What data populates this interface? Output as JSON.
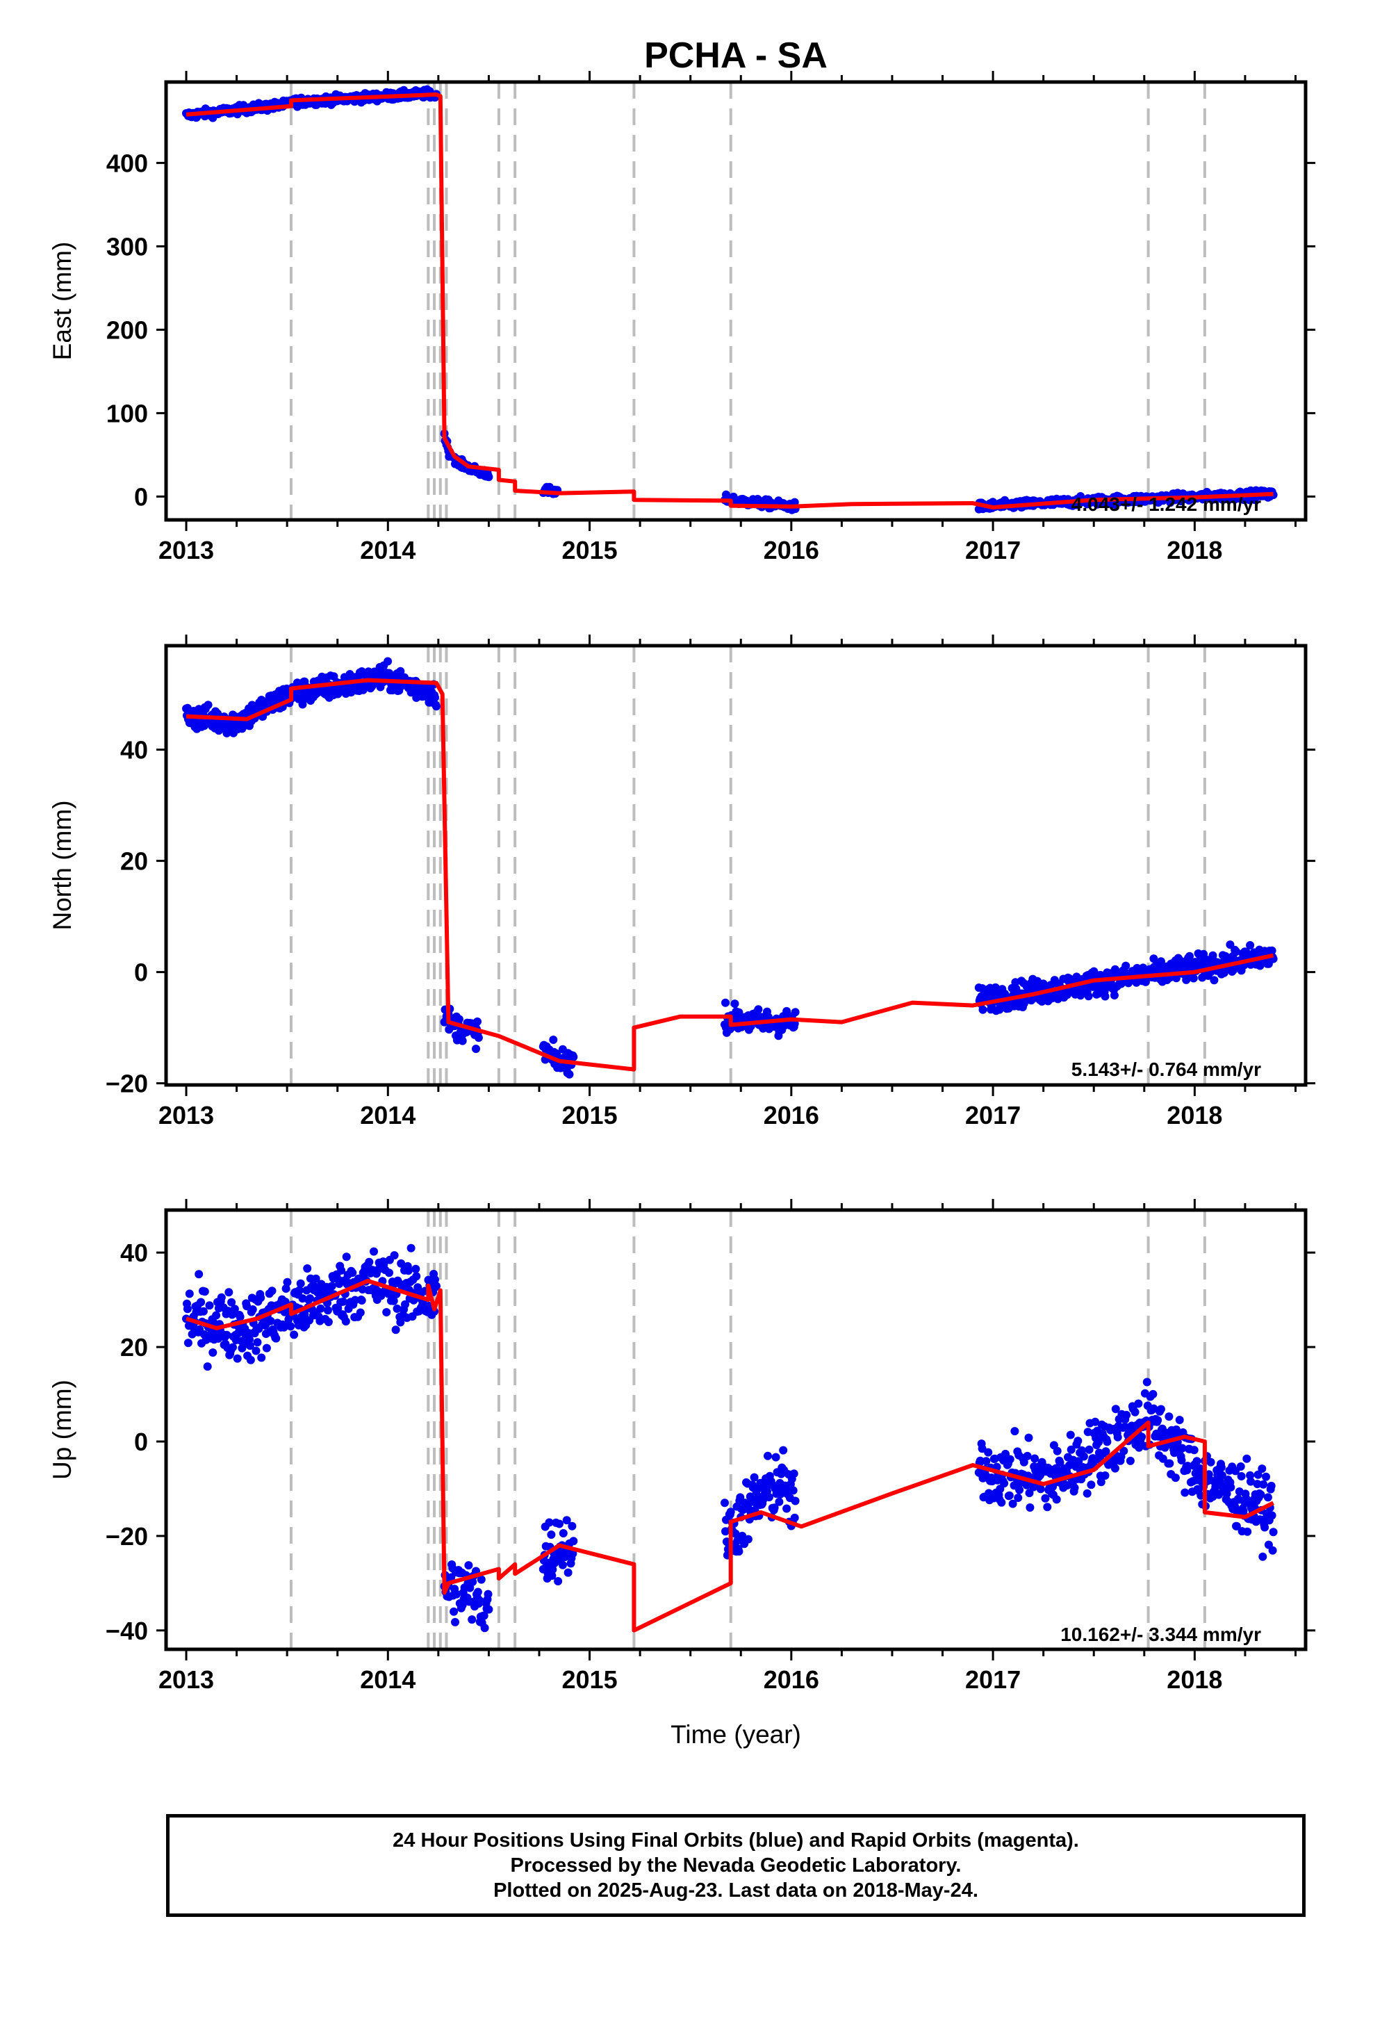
{
  "title": "PCHA - SA",
  "x_axis_label": "Time (year)",
  "caption": [
    "24 Hour Positions Using Final Orbits (blue) and Rapid Orbits (magenta).",
    "Processed by the Nevada Geodetic Laboratory.",
    "Plotted on 2025-Aug-23. Last data on 2018-May-24."
  ],
  "colors": {
    "points_final": "#0000ee",
    "model": "#ff0000",
    "event_lines": "#bdbdbd",
    "frame": "#000000"
  },
  "chart_data": [
    {
      "type": "scatter",
      "component": "East",
      "ylabel": "East (mm)",
      "xlim": [
        2012.9,
        2018.55
      ],
      "ylim": [
        -28,
        497
      ],
      "xticks": [
        2013,
        2014,
        2015,
        2016,
        2017,
        2018
      ],
      "yticks": [
        0,
        100,
        200,
        300,
        400
      ],
      "rate_label": "4.043+/- 1.242 mm/yr",
      "event_lines": [
        2013.52,
        2014.2,
        2014.23,
        2014.26,
        2014.29,
        2014.55,
        2014.63,
        2015.22,
        2015.7,
        2017.77,
        2018.05
      ],
      "data_segments": [
        {
          "x": [
            2013.0,
            2013.5,
            2013.52,
            2014.2,
            2014.24
          ],
          "y": [
            457,
            470,
            473,
            483,
            480
          ]
        },
        {
          "x": [
            2014.28,
            2014.3,
            2014.35,
            2014.45,
            2014.5
          ],
          "y": [
            75,
            55,
            40,
            30,
            27
          ]
        },
        {
          "x": [
            2014.77,
            2014.84
          ],
          "y": [
            8,
            4
          ]
        },
        {
          "x": [
            2015.67,
            2015.8,
            2016.02
          ],
          "y": [
            -3,
            -7,
            -12
          ]
        },
        {
          "x": [
            2016.93,
            2017.5,
            2018.39
          ],
          "y": [
            -12,
            -5,
            3
          ]
        }
      ],
      "model_x": [
        2013.0,
        2013.52,
        2013.52,
        2014.24,
        2014.26,
        2014.28,
        2014.33,
        2014.4,
        2014.55,
        2014.55,
        2014.63,
        2014.63,
        2014.85,
        2015.22,
        2015.22,
        2015.7,
        2015.7,
        2016.0,
        2016.3,
        2016.9,
        2017.0,
        2017.5,
        2018.0,
        2018.39
      ],
      "model_y": [
        458,
        468,
        475,
        482,
        480,
        70,
        48,
        36,
        32,
        20,
        18,
        7,
        4,
        6,
        -4,
        -5,
        -11,
        -12,
        -9,
        -8,
        -13,
        -4,
        -1,
        3
      ]
    },
    {
      "type": "scatter",
      "component": "North",
      "ylabel": "North (mm)",
      "xlim": [
        2012.9,
        2018.55
      ],
      "ylim": [
        -20.3,
        58.7
      ],
      "xticks": [
        2013,
        2014,
        2015,
        2016,
        2017,
        2018
      ],
      "yticks": [
        -20,
        0,
        20,
        40
      ],
      "rate_label": "5.143+/- 0.764 mm/yr",
      "event_lines": [
        2013.52,
        2014.2,
        2014.23,
        2014.26,
        2014.29,
        2014.55,
        2014.63,
        2015.22,
        2015.7,
        2017.77,
        2018.05
      ],
      "data_segments": [
        {
          "x": [
            2013.0,
            2013.25,
            2013.52,
            2014.0,
            2014.24
          ],
          "y": [
            46,
            45,
            50,
            53,
            50
          ]
        },
        {
          "x": [
            2014.28,
            2014.35,
            2014.45
          ],
          "y": [
            -8,
            -10,
            -11
          ]
        },
        {
          "x": [
            2014.77,
            2014.84,
            2014.92
          ],
          "y": [
            -14,
            -16,
            -16
          ]
        },
        {
          "x": [
            2015.67,
            2015.8,
            2016.02
          ],
          "y": [
            -8,
            -9,
            -9
          ]
        },
        {
          "x": [
            2016.93,
            2017.5,
            2018.39
          ],
          "y": [
            -5,
            -2,
            3
          ]
        }
      ],
      "model_x": [
        2013.0,
        2013.3,
        2013.52,
        2013.52,
        2013.9,
        2014.24,
        2014.27,
        2014.3,
        2014.55,
        2014.85,
        2015.22,
        2015.22,
        2015.45,
        2015.7,
        2015.7,
        2016.0,
        2016.25,
        2016.6,
        2016.9,
        2017.2,
        2017.5,
        2018.0,
        2018.39
      ],
      "model_y": [
        46,
        45.5,
        49,
        51,
        52.5,
        52,
        50,
        -9,
        -11.5,
        -16,
        -17.5,
        -10,
        -8,
        -8,
        -9.5,
        -8.5,
        -9,
        -5.5,
        -6,
        -4,
        -1.5,
        0,
        3
      ]
    },
    {
      "type": "scatter",
      "component": "Up",
      "ylabel": "Up (mm)",
      "xlim": [
        2012.9,
        2018.55
      ],
      "ylim": [
        -44,
        49
      ],
      "xticks": [
        2013,
        2014,
        2015,
        2016,
        2017,
        2018
      ],
      "yticks": [
        -40,
        -20,
        0,
        20,
        40
      ],
      "rate_label": "10.162+/- 3.344 mm/yr",
      "event_lines": [
        2013.52,
        2014.2,
        2014.23,
        2014.26,
        2014.29,
        2014.55,
        2014.63,
        2015.22,
        2015.7,
        2017.77,
        2018.05
      ],
      "data_segments": [
        {
          "x": [
            2013.0,
            2013.3,
            2013.6,
            2013.9,
            2014.24
          ],
          "y": [
            26,
            24,
            29,
            34,
            30
          ]
        },
        {
          "x": [
            2014.28,
            2014.4,
            2014.5
          ],
          "y": [
            -30,
            -32,
            -35
          ]
        },
        {
          "x": [
            2014.77,
            2014.84,
            2014.92
          ],
          "y": [
            -24,
            -22,
            -22
          ]
        },
        {
          "x": [
            2015.67,
            2015.8,
            2015.95,
            2016.02
          ],
          "y": [
            -20,
            -14,
            -8,
            -15
          ]
        },
        {
          "x": [
            2016.93,
            2017.3,
            2017.77,
            2018.05,
            2018.39
          ],
          "y": [
            -6,
            -8,
            5,
            -8,
            -15
          ]
        }
      ],
      "model_x": [
        2013.0,
        2013.15,
        2013.35,
        2013.52,
        2013.52,
        2013.9,
        2014.2,
        2014.2,
        2014.23,
        2014.26,
        2014.28,
        2014.3,
        2014.55,
        2014.55,
        2014.63,
        2014.63,
        2014.85,
        2015.22,
        2015.22,
        2015.7,
        2015.7,
        2015.85,
        2016.05,
        2016.5,
        2016.9,
        2017.25,
        2017.5,
        2017.77,
        2017.77,
        2017.95,
        2018.05,
        2018.05,
        2018.25,
        2018.39
      ],
      "model_y": [
        26,
        24,
        26,
        29,
        27,
        34,
        30,
        33,
        28,
        32,
        -32,
        -30,
        -27,
        -29,
        -26,
        -28,
        -22,
        -26,
        -40,
        -30,
        -17,
        -15,
        -18,
        -11,
        -5,
        -9,
        -6,
        4,
        -1,
        1,
        0,
        -15,
        -16,
        -13
      ]
    }
  ]
}
